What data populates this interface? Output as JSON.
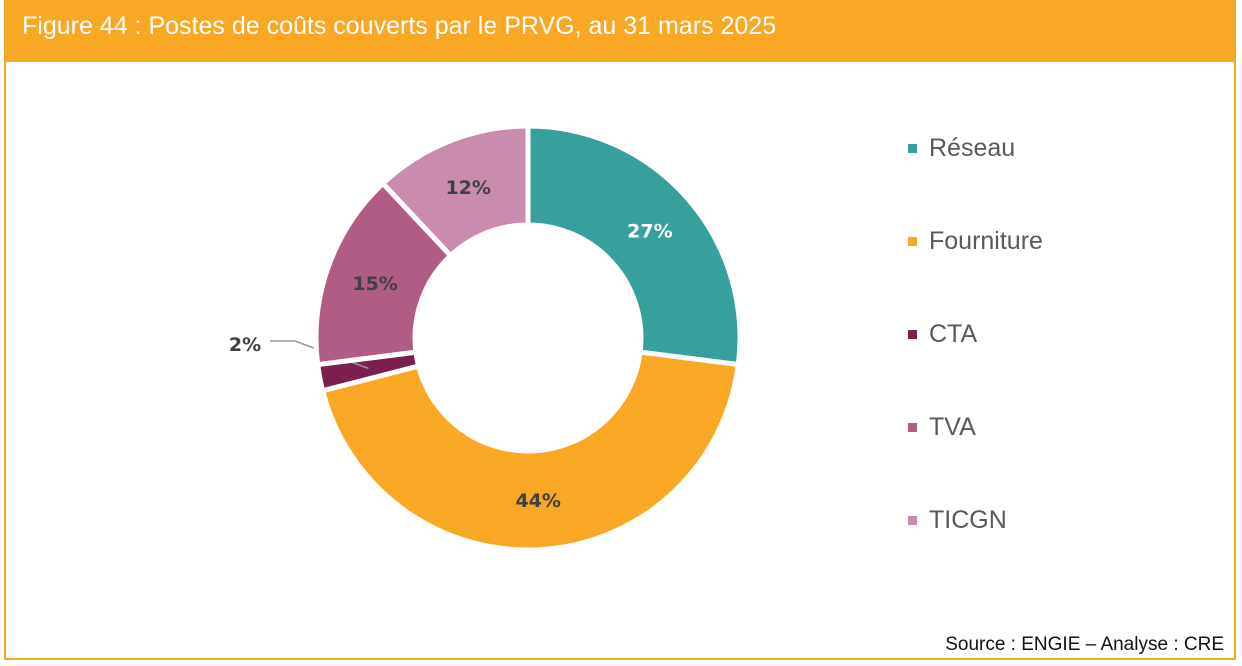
{
  "header": {
    "title": "Figure 44 : Postes de coûts couverts par le PRVG, au 31 mars 2025"
  },
  "footer": {
    "source": "Source : ENGIE – Analyse : CRE"
  },
  "chart_data": {
    "type": "pie",
    "variant": "donut",
    "title": "Figure 44 : Postes de coûts couverts par le PRVG, au 31 mars 2025",
    "categories": [
      "Réseau",
      "Fourniture",
      "CTA",
      "TVA",
      "TICGN"
    ],
    "values": [
      27,
      44,
      2,
      15,
      12
    ],
    "labels": [
      "27%",
      "44%",
      "2%",
      "15%",
      "12%"
    ],
    "colors": [
      "#37A09D",
      "#F9A825",
      "#7B1F4F",
      "#B05C85",
      "#C98BAE"
    ],
    "label_colors": [
      "#ffffff",
      "#404040",
      "#404040",
      "#404040",
      "#404040"
    ],
    "legend_position": "right",
    "start": "top",
    "direction": "clockwise"
  }
}
